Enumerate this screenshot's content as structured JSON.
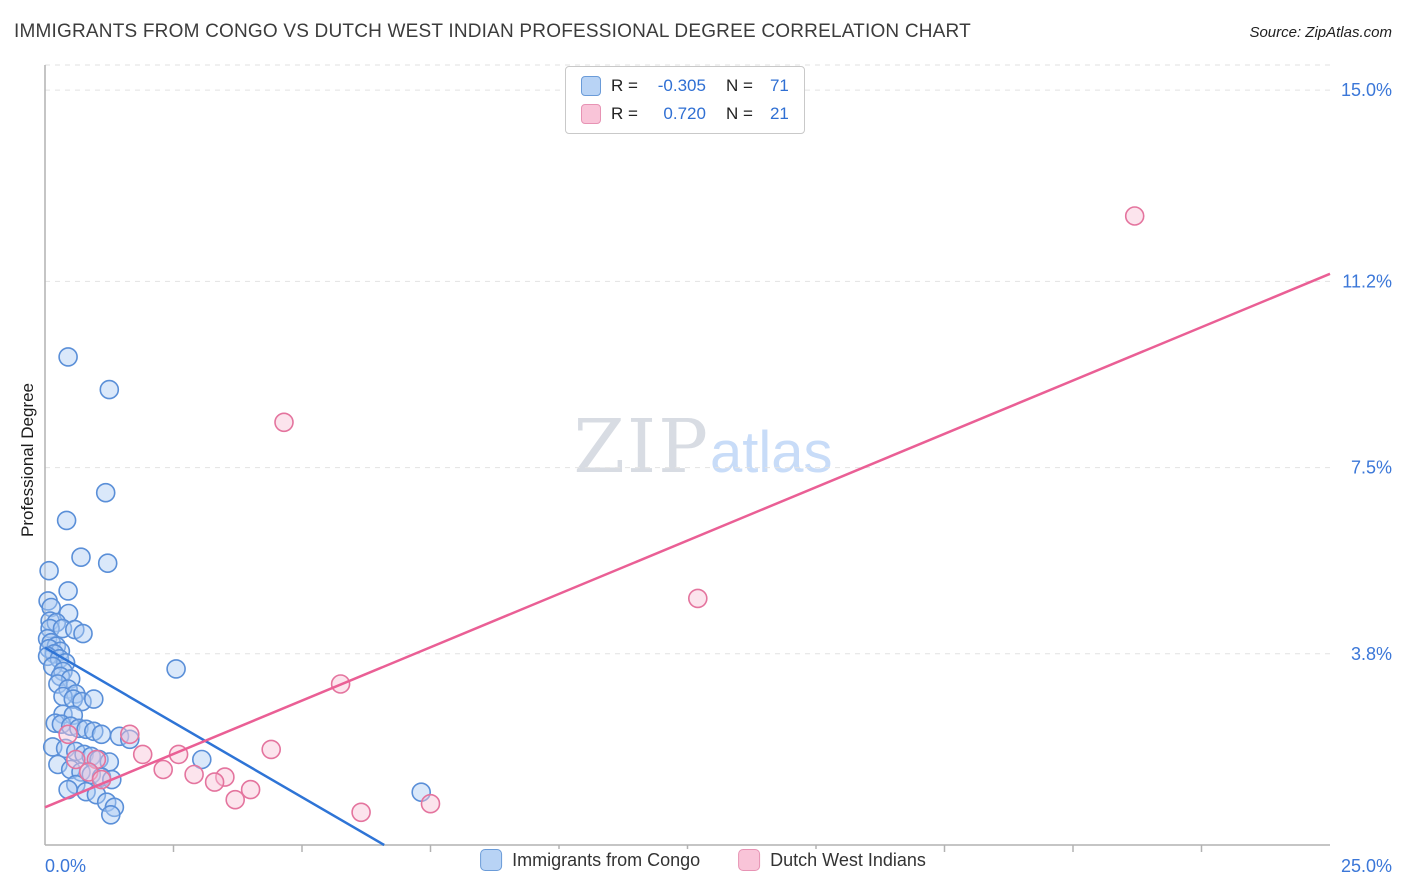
{
  "header": {
    "title": "IMMIGRANTS FROM CONGO VS DUTCH WEST INDIAN PROFESSIONAL DEGREE CORRELATION CHART",
    "source": "Source: ZipAtlas.com"
  },
  "watermark": {
    "zip": "ZIP",
    "atlas": "atlas"
  },
  "y_axis_label": "Professional Degree",
  "legend_box": {
    "rows": [
      {
        "r_label": "R =",
        "r": "-0.305",
        "n_label": "N =",
        "n": "71"
      },
      {
        "r_label": "R =",
        "r": "0.720",
        "n_label": "N =",
        "n": "21"
      }
    ]
  },
  "bottom_legend": {
    "items": [
      {
        "label": "Immigrants from Congo"
      },
      {
        "label": "Dutch West Indians"
      }
    ]
  },
  "chart_data": {
    "type": "scatter",
    "title": "Immigrants from Congo vs Dutch West Indian Professional Degree Correlation",
    "xlabel": "",
    "ylabel": "Professional Degree",
    "x_units": "percent",
    "y_units": "percent",
    "xlim": [
      0,
      25
    ],
    "ylim": [
      0,
      15.5
    ],
    "x_min_label": "0.0%",
    "x_max_label": "25.0%",
    "x_tick_values": [
      2.5,
      5,
      7.5,
      10,
      12.5,
      15,
      17.5,
      20,
      22.5
    ],
    "y_gridlines": [
      {
        "value": 15.0,
        "label": "15.0%"
      },
      {
        "value": 11.2,
        "label": "11.2%"
      },
      {
        "value": 7.5,
        "label": "7.5%"
      },
      {
        "value": 3.8,
        "label": "3.8%"
      }
    ],
    "grid": true,
    "legend_position": "bottom",
    "series": [
      {
        "id": "congo",
        "name": "Immigrants from Congo",
        "R": -0.305,
        "N": 71,
        "fill": "#aecdf5",
        "stroke": "#5a8fd8",
        "line": "#2e74d6",
        "trend": {
          "x1": 0,
          "y1": 3.92,
          "x2": 6.6,
          "y2": 0
        },
        "points": [
          [
            0.45,
            9.7
          ],
          [
            1.25,
            9.05
          ],
          [
            1.18,
            7.0
          ],
          [
            0.42,
            6.45
          ],
          [
            0.7,
            5.72
          ],
          [
            1.22,
            5.6
          ],
          [
            0.08,
            5.45
          ],
          [
            0.45,
            5.05
          ],
          [
            0.06,
            4.85
          ],
          [
            0.12,
            4.72
          ],
          [
            0.46,
            4.6
          ],
          [
            0.1,
            4.45
          ],
          [
            0.22,
            4.42
          ],
          [
            0.1,
            4.3
          ],
          [
            0.34,
            4.3
          ],
          [
            0.58,
            4.28
          ],
          [
            0.74,
            4.2
          ],
          [
            0.05,
            4.1
          ],
          [
            0.12,
            4.02
          ],
          [
            0.22,
            3.95
          ],
          [
            0.08,
            3.9
          ],
          [
            0.3,
            3.85
          ],
          [
            0.18,
            3.8
          ],
          [
            0.05,
            3.75
          ],
          [
            0.28,
            3.7
          ],
          [
            0.4,
            3.62
          ],
          [
            0.15,
            3.55
          ],
          [
            0.35,
            3.45
          ],
          [
            2.55,
            3.5
          ],
          [
            0.3,
            3.35
          ],
          [
            0.5,
            3.3
          ],
          [
            0.25,
            3.2
          ],
          [
            0.45,
            3.1
          ],
          [
            0.6,
            3.0
          ],
          [
            0.35,
            2.95
          ],
          [
            0.55,
            2.9
          ],
          [
            0.72,
            2.85
          ],
          [
            0.95,
            2.9
          ],
          [
            0.35,
            2.6
          ],
          [
            0.55,
            2.58
          ],
          [
            0.2,
            2.42
          ],
          [
            0.32,
            2.4
          ],
          [
            0.5,
            2.36
          ],
          [
            0.66,
            2.32
          ],
          [
            0.8,
            2.3
          ],
          [
            0.95,
            2.26
          ],
          [
            1.1,
            2.2
          ],
          [
            1.45,
            2.16
          ],
          [
            1.65,
            2.1
          ],
          [
            0.15,
            1.95
          ],
          [
            0.4,
            1.92
          ],
          [
            0.6,
            1.86
          ],
          [
            0.76,
            1.8
          ],
          [
            0.9,
            1.76
          ],
          [
            1.05,
            1.7
          ],
          [
            3.05,
            1.7
          ],
          [
            1.25,
            1.65
          ],
          [
            0.25,
            1.6
          ],
          [
            0.5,
            1.5
          ],
          [
            0.7,
            1.45
          ],
          [
            0.9,
            1.4
          ],
          [
            1.1,
            1.35
          ],
          [
            1.3,
            1.3
          ],
          [
            0.6,
            1.2
          ],
          [
            0.45,
            1.1
          ],
          [
            0.8,
            1.06
          ],
          [
            7.32,
            1.05
          ],
          [
            1.0,
            1.0
          ],
          [
            1.2,
            0.85
          ],
          [
            1.35,
            0.75
          ],
          [
            1.28,
            0.6
          ]
        ]
      },
      {
        "id": "dwi",
        "name": "Dutch West Indians",
        "R": 0.72,
        "N": 21,
        "fill": "#f9c4d8",
        "stroke": "#e4749e",
        "line": "#ea5f95",
        "trend": {
          "x1": 0,
          "y1": 0.75,
          "x2": 25,
          "y2": 11.35
        },
        "points": [
          [
            21.2,
            12.5
          ],
          [
            4.65,
            8.4
          ],
          [
            12.7,
            4.9
          ],
          [
            5.75,
            3.2
          ],
          [
            0.45,
            2.2
          ],
          [
            1.65,
            2.2
          ],
          [
            1.9,
            1.8
          ],
          [
            2.6,
            1.8
          ],
          [
            4.4,
            1.9
          ],
          [
            0.6,
            1.7
          ],
          [
            1.0,
            1.7
          ],
          [
            2.3,
            1.5
          ],
          [
            0.85,
            1.45
          ],
          [
            2.9,
            1.4
          ],
          [
            3.5,
            1.35
          ],
          [
            1.1,
            1.3
          ],
          [
            3.3,
            1.25
          ],
          [
            4.0,
            1.1
          ],
          [
            3.7,
            0.9
          ],
          [
            7.5,
            0.82
          ],
          [
            6.15,
            0.65
          ]
        ]
      }
    ]
  }
}
